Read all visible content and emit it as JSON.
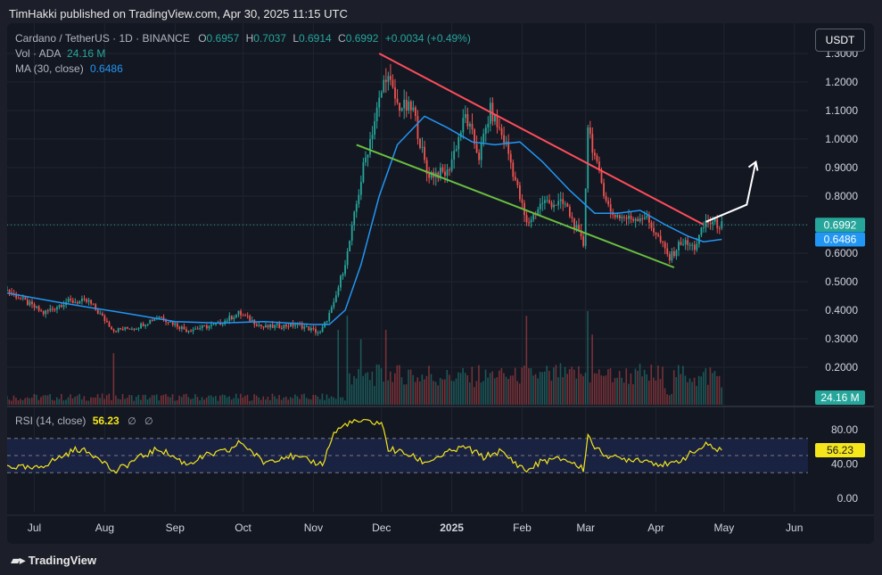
{
  "header": {
    "text": "TimHakki published on TradingView.com, Apr 30, 2025 11:15 UTC"
  },
  "legend": {
    "symbol": "Cardano / TetherUS · 1D · BINANCE",
    "o_label": "O",
    "o_value": "0.6957",
    "h_label": "H",
    "h_value": "0.7037",
    "l_label": "L",
    "l_value": "0.6914",
    "c_label": "C",
    "c_value": "0.6992",
    "change": "+0.0034 (+0.49%)",
    "vol_label": "Vol · ADA",
    "vol_value": "24.16 M",
    "ma_label": "MA (30, close)",
    "ma_value": "0.6486"
  },
  "rsi_legend": {
    "label": "RSI (14, close)",
    "value": "56.23",
    "icon1": "∅",
    "icon2": "∅"
  },
  "currency_button": "USDT",
  "footer": {
    "brand": "TradingView",
    "logo_icon": "tradingview-logo-icon"
  },
  "colors": {
    "background": "#131722",
    "up": "#26a69a",
    "down": "#ef5350",
    "ma": "#2196f3",
    "rsi": "#f5e61b",
    "resistance_line": "#ff4d5a",
    "support_line": "#6abf40",
    "projection_arrow": "#ffffff"
  },
  "chart_data": [
    {
      "type": "candlestick",
      "title": "Cardano / TetherUS · 1D · BINANCE",
      "x_range": [
        "2025-06-01",
        "2025-06-01"
      ],
      "x_start": "2024-06-19",
      "x_end": "2025-06-07",
      "y_scale": "linear",
      "ylim": [
        0.0,
        1.32
      ],
      "y_ticks": [
        "1.3000",
        "1.2000",
        "1.1000",
        "1.0000",
        "0.9000",
        "0.8000",
        "0.7000",
        "0.6000",
        "0.5000",
        "0.4000",
        "0.3000",
        "0.2000"
      ],
      "x_ticks": [
        {
          "label": "Jul",
          "date": "2024-07-01"
        },
        {
          "label": "Aug",
          "date": "2024-08-01"
        },
        {
          "label": "Sep",
          "date": "2024-09-01"
        },
        {
          "label": "Oct",
          "date": "2024-10-01"
        },
        {
          "label": "Nov",
          "date": "2024-11-01"
        },
        {
          "label": "Dec",
          "date": "2024-12-01"
        },
        {
          "label": "2025",
          "date": "2025-01-01"
        },
        {
          "label": "Feb",
          "date": "2025-02-01"
        },
        {
          "label": "Mar",
          "date": "2025-03-01"
        },
        {
          "label": "Apr",
          "date": "2025-04-01"
        },
        {
          "label": "May",
          "date": "2025-05-01"
        },
        {
          "label": "Jun",
          "date": "2025-06-01"
        }
      ],
      "price_path": [
        [
          "2024-06-19",
          0.47
        ],
        [
          "2024-07-05",
          0.39
        ],
        [
          "2024-07-15",
          0.43
        ],
        [
          "2024-07-25",
          0.43
        ],
        [
          "2024-08-05",
          0.33
        ],
        [
          "2024-08-15",
          0.34
        ],
        [
          "2024-08-25",
          0.38
        ],
        [
          "2024-09-06",
          0.33
        ],
        [
          "2024-09-20",
          0.35
        ],
        [
          "2024-09-29",
          0.39
        ],
        [
          "2024-10-10",
          0.34
        ],
        [
          "2024-10-25",
          0.35
        ],
        [
          "2024-11-04",
          0.32
        ],
        [
          "2024-11-10",
          0.42
        ],
        [
          "2024-11-16",
          0.6
        ],
        [
          "2024-11-23",
          0.9
        ],
        [
          "2024-12-03",
          1.23
        ],
        [
          "2024-12-08",
          1.12
        ],
        [
          "2024-12-15",
          1.1
        ],
        [
          "2024-12-21",
          0.88
        ],
        [
          "2024-12-30",
          0.88
        ],
        [
          "2025-01-07",
          1.08
        ],
        [
          "2025-01-13",
          0.94
        ],
        [
          "2025-01-18",
          1.1
        ],
        [
          "2025-01-25",
          0.98
        ],
        [
          "2025-02-03",
          0.7
        ],
        [
          "2025-02-10",
          0.78
        ],
        [
          "2025-02-20",
          0.77
        ],
        [
          "2025-02-28",
          0.63
        ],
        [
          "2025-03-02",
          1.05
        ],
        [
          "2025-03-06",
          0.9
        ],
        [
          "2025-03-12",
          0.74
        ],
        [
          "2025-03-20",
          0.72
        ],
        [
          "2025-03-27",
          0.73
        ],
        [
          "2025-04-01",
          0.67
        ],
        [
          "2025-04-07",
          0.58
        ],
        [
          "2025-04-12",
          0.64
        ],
        [
          "2025-04-18",
          0.62
        ],
        [
          "2025-04-23",
          0.71
        ],
        [
          "2025-04-30",
          0.699
        ]
      ],
      "last_price": {
        "value": 0.6992,
        "label": "0.6992"
      },
      "ma": {
        "name": "MA (30, close)",
        "last": {
          "value": 0.6486,
          "label": "0.6486"
        },
        "path": [
          [
            "2024-06-19",
            0.46
          ],
          [
            "2024-07-10",
            0.43
          ],
          [
            "2024-07-25",
            0.41
          ],
          [
            "2024-08-10",
            0.39
          ],
          [
            "2024-09-01",
            0.36
          ],
          [
            "2024-09-20",
            0.355
          ],
          [
            "2024-10-10",
            0.36
          ],
          [
            "2024-11-01",
            0.35
          ],
          [
            "2024-11-08",
            0.35
          ],
          [
            "2024-11-15",
            0.4
          ],
          [
            "2024-11-22",
            0.56
          ],
          [
            "2024-11-30",
            0.8
          ],
          [
            "2024-12-08",
            0.98
          ],
          [
            "2024-12-20",
            1.08
          ],
          [
            "2024-12-30",
            1.04
          ],
          [
            "2025-01-10",
            0.99
          ],
          [
            "2025-01-20",
            0.98
          ],
          [
            "2025-01-31",
            0.99
          ],
          [
            "2025-02-10",
            0.92
          ],
          [
            "2025-02-22",
            0.82
          ],
          [
            "2025-03-05",
            0.74
          ],
          [
            "2025-03-15",
            0.74
          ],
          [
            "2025-03-25",
            0.75
          ],
          [
            "2025-04-05",
            0.7
          ],
          [
            "2025-04-15",
            0.66
          ],
          [
            "2025-04-22",
            0.64
          ],
          [
            "2025-04-30",
            0.6486
          ]
        ]
      },
      "trendlines": [
        {
          "name": "resistance",
          "from": [
            "2024-11-30",
            1.3
          ],
          "to": [
            "2025-04-22",
            0.7
          ]
        },
        {
          "name": "support",
          "from": [
            "2024-11-20",
            0.98
          ],
          "to": [
            "2025-04-09",
            0.55
          ]
        }
      ],
      "projection_arrow": [
        [
          "2025-04-23",
          0.71
        ],
        [
          "2025-05-11",
          0.77
        ],
        [
          "2025-05-15",
          0.92
        ]
      ]
    },
    {
      "type": "bar",
      "name": "Vol · ADA",
      "last": {
        "label": "24.16 M"
      },
      "spikes": [
        [
          "2024-08-05",
          0.55
        ],
        [
          "2024-11-12",
          0.8
        ],
        [
          "2024-11-16",
          0.95
        ],
        [
          "2024-11-22",
          0.7
        ],
        [
          "2024-12-03",
          0.8
        ],
        [
          "2025-02-03",
          0.95
        ],
        [
          "2025-03-02",
          1.0
        ],
        [
          "2025-03-04",
          0.75
        ]
      ]
    },
    {
      "type": "line",
      "name": "RSI (14, close)",
      "ylim": [
        0,
        100
      ],
      "y_ticks": [
        "80.00",
        "40.00",
        "0.00"
      ],
      "bands": [
        70,
        50,
        30
      ],
      "last": {
        "value": 56.23,
        "label": "56.23"
      },
      "path": [
        [
          "2024-06-19",
          38
        ],
        [
          "2024-07-01",
          34
        ],
        [
          "2024-07-10",
          45
        ],
        [
          "2024-07-20",
          58
        ],
        [
          "2024-07-30",
          48
        ],
        [
          "2024-08-05",
          30
        ],
        [
          "2024-08-15",
          46
        ],
        [
          "2024-08-25",
          58
        ],
        [
          "2024-09-06",
          40
        ],
        [
          "2024-09-15",
          50
        ],
        [
          "2024-09-25",
          56
        ],
        [
          "2024-09-30",
          66
        ],
        [
          "2024-10-10",
          42
        ],
        [
          "2024-10-20",
          50
        ],
        [
          "2024-10-30",
          44
        ],
        [
          "2024-11-05",
          40
        ],
        [
          "2024-11-10",
          76
        ],
        [
          "2024-11-16",
          88
        ],
        [
          "2024-11-23",
          90
        ],
        [
          "2024-12-01",
          88
        ],
        [
          "2024-12-04",
          58
        ],
        [
          "2024-12-12",
          52
        ],
        [
          "2024-12-20",
          42
        ],
        [
          "2025-01-01",
          55
        ],
        [
          "2025-01-07",
          60
        ],
        [
          "2025-01-15",
          48
        ],
        [
          "2025-01-22",
          55
        ],
        [
          "2025-02-03",
          32
        ],
        [
          "2025-02-10",
          44
        ],
        [
          "2025-02-20",
          46
        ],
        [
          "2025-02-28",
          34
        ],
        [
          "2025-03-02",
          74
        ],
        [
          "2025-03-06",
          56
        ],
        [
          "2025-03-15",
          46
        ],
        [
          "2025-03-25",
          46
        ],
        [
          "2025-04-07",
          38
        ],
        [
          "2025-04-15",
          50
        ],
        [
          "2025-04-23",
          62
        ],
        [
          "2025-04-30",
          56.23
        ]
      ]
    }
  ]
}
